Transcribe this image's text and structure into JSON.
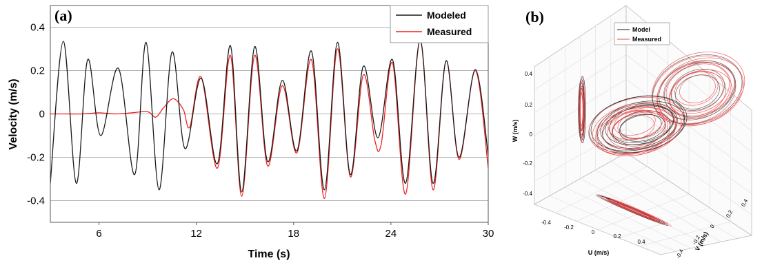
{
  "chart_data": [
    {
      "panel": "(a)",
      "type": "line",
      "xlabel": "Time (s)",
      "ylabel": "Velocity (m/s)",
      "xlim": [
        3,
        30
      ],
      "ylim": [
        -0.5,
        0.5
      ],
      "xticks": [
        6,
        12,
        18,
        24,
        30
      ],
      "yticks": [
        0.4,
        0.2,
        0,
        -0.2,
        -0.4
      ],
      "yticklabels": [
        "0.4",
        "0.2",
        "0",
        "-0.2",
        "-0.4"
      ],
      "grid": "horizontal",
      "legend": "top-right",
      "series": [
        {
          "name": "Modeled",
          "color": "#1a1a1a",
          "x": [
            3.0,
            3.8,
            4.6,
            5.3,
            6.1,
            7.2,
            8.2,
            8.9,
            9.7,
            10.5,
            11.3,
            12.3,
            13.3,
            14.1,
            14.8,
            15.6,
            16.4,
            17.3,
            18.2,
            19.1,
            19.9,
            20.7,
            21.5,
            22.3,
            23.2,
            24.1,
            24.9,
            25.8,
            26.6,
            27.4,
            28.2,
            29.2,
            30.0
          ],
          "y": [
            -0.32,
            0.335,
            -0.32,
            0.25,
            -0.1,
            0.21,
            -0.28,
            0.33,
            -0.35,
            0.285,
            -0.16,
            0.165,
            -0.23,
            0.315,
            -0.36,
            0.31,
            -0.22,
            0.155,
            -0.17,
            0.29,
            -0.35,
            0.33,
            -0.28,
            0.22,
            -0.11,
            0.25,
            -0.32,
            0.34,
            -0.32,
            0.245,
            -0.2,
            0.205,
            -0.19
          ]
        },
        {
          "name": "Measured",
          "color": "#ee2222",
          "x": [
            3.0,
            4.0,
            5.0,
            6.0,
            7.0,
            8.0,
            9.0,
            9.5,
            10.0,
            10.6,
            11.2,
            11.6,
            12.3,
            13.3,
            14.1,
            14.8,
            15.6,
            16.4,
            17.3,
            18.2,
            19.1,
            19.9,
            20.7,
            21.5,
            22.3,
            23.0,
            23.4,
            24.1,
            24.9,
            25.8,
            26.6,
            27.4,
            28.2,
            29.2,
            30.0
          ],
          "y": [
            0.0,
            0.0,
            0.0,
            0.005,
            0.0,
            0.005,
            0.01,
            -0.015,
            0.03,
            0.07,
            0.02,
            -0.06,
            0.17,
            -0.25,
            0.27,
            -0.38,
            0.27,
            -0.24,
            0.13,
            -0.18,
            0.25,
            -0.39,
            0.3,
            -0.29,
            0.18,
            -0.12,
            -0.14,
            0.235,
            -0.37,
            0.34,
            -0.35,
            0.245,
            -0.21,
            0.2,
            -0.25
          ]
        }
      ]
    },
    {
      "panel": "(b)",
      "type": "line",
      "projection": "3d",
      "xlabel": "U (m/s)",
      "ylabel": "V (m/s)",
      "zlabel": "W (m/s)",
      "u_ticks": [
        "-0.4",
        "-0.2",
        "0",
        "0.2",
        "0.4"
      ],
      "v_ticks": [
        "-0.4",
        "-0.2",
        "0",
        "0.2",
        "0.4"
      ],
      "w_ticks": [
        "0.4",
        "0.2",
        "0",
        "-0.2",
        "-0.4"
      ],
      "legend": "top-left",
      "series": [
        {
          "name": "Model",
          "color": "#1a1a1a"
        },
        {
          "name": "Measured",
          "color": "#ee4444"
        }
      ]
    }
  ]
}
